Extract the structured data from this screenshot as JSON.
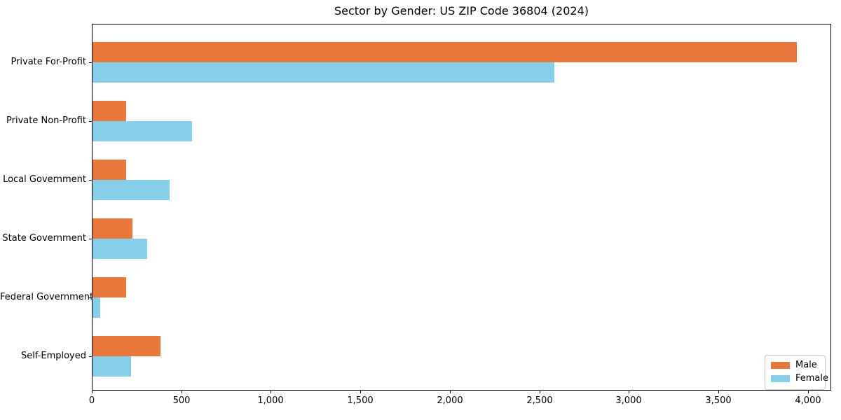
{
  "chart_data": {
    "type": "bar",
    "orientation": "horizontal",
    "title": "Sector by Gender: US ZIP Code 36804 (2024)",
    "categories": [
      "Private For-Profit",
      "Private Non-Profit",
      "Local Government",
      "State Government",
      "Federal Government",
      "Self-Employed"
    ],
    "series": [
      {
        "name": "Male",
        "color": "#e8783c",
        "values": [
          3933,
          189,
          189,
          224,
          189,
          379
        ]
      },
      {
        "name": "Female",
        "color": "#87ceeb",
        "values": [
          2578,
          557,
          431,
          305,
          43,
          214
        ]
      }
    ],
    "xlabel": "",
    "ylabel": "",
    "xlim": [
      0,
      4130
    ],
    "xticks": [
      0,
      500,
      1000,
      1500,
      2000,
      2500,
      3000,
      3500,
      4000
    ],
    "xtick_labels": [
      "0",
      "500",
      "1,000",
      "1,500",
      "2,000",
      "2,500",
      "3,000",
      "3,500",
      "4,000"
    ],
    "grid": false,
    "legend": {
      "position": "lower right",
      "entries": [
        "Male",
        "Female"
      ]
    }
  },
  "colors": {
    "axis": "#000000",
    "background": "#ffffff",
    "legend_border": "#c9c9c9",
    "male": "#e8783c",
    "female": "#87ceeb"
  }
}
